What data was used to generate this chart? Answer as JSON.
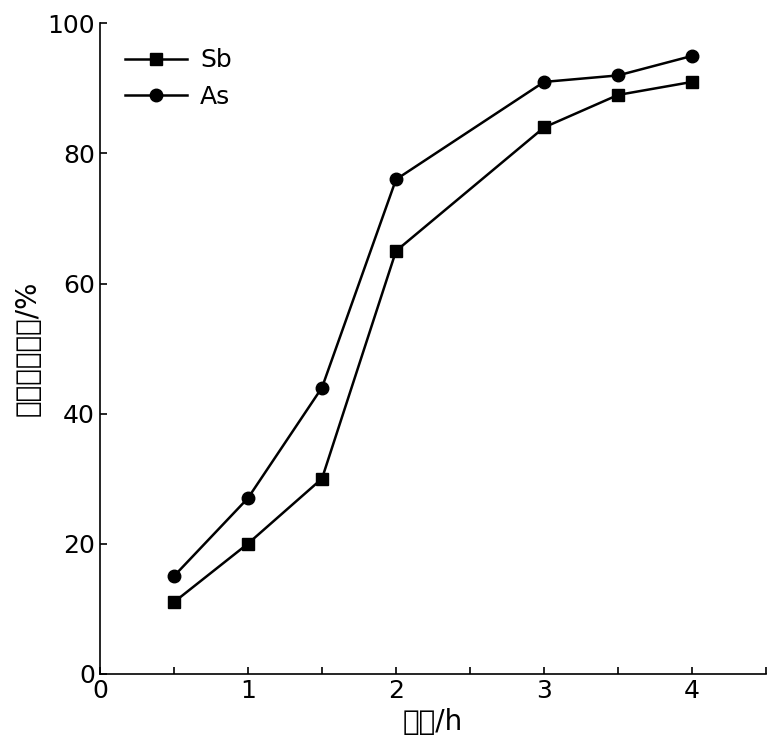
{
  "sb_x": [
    0.5,
    1.0,
    1.5,
    2.0,
    3.0,
    3.5,
    4.0
  ],
  "sb_y": [
    11,
    20,
    30,
    65,
    84,
    89,
    91
  ],
  "as_x": [
    0.5,
    1.0,
    1.5,
    2.0,
    3.0,
    3.5,
    4.0
  ],
  "as_y": [
    15,
    27,
    44,
    76,
    91,
    92,
    95
  ],
  "line_color": "#000000",
  "xlabel": "时间/h",
  "ylabel": "重金属去除率/%",
  "xlim": [
    0,
    4.5
  ],
  "ylim": [
    0,
    100
  ],
  "xticks": [
    0,
    0.5,
    1.0,
    1.5,
    2.0,
    2.5,
    3.0,
    3.5,
    4.0,
    4.5
  ],
  "xtick_labels": [
    "0",
    "",
    "1",
    "",
    "2",
    "",
    "3",
    "",
    "4",
    ""
  ],
  "yticks": [
    0,
    20,
    40,
    60,
    80,
    100
  ],
  "ytick_labels": [
    "0",
    "20",
    "40",
    "60",
    "80",
    "100"
  ],
  "legend_sb": "Sb",
  "legend_as": "As",
  "marker_sb": "s",
  "marker_as": "o",
  "marker_size": 9,
  "line_width": 1.8,
  "xlabel_fontsize": 20,
  "ylabel_fontsize": 20,
  "tick_fontsize": 18,
  "legend_fontsize": 18,
  "fig_width": 7.8,
  "fig_height": 7.5,
  "dpi": 100
}
